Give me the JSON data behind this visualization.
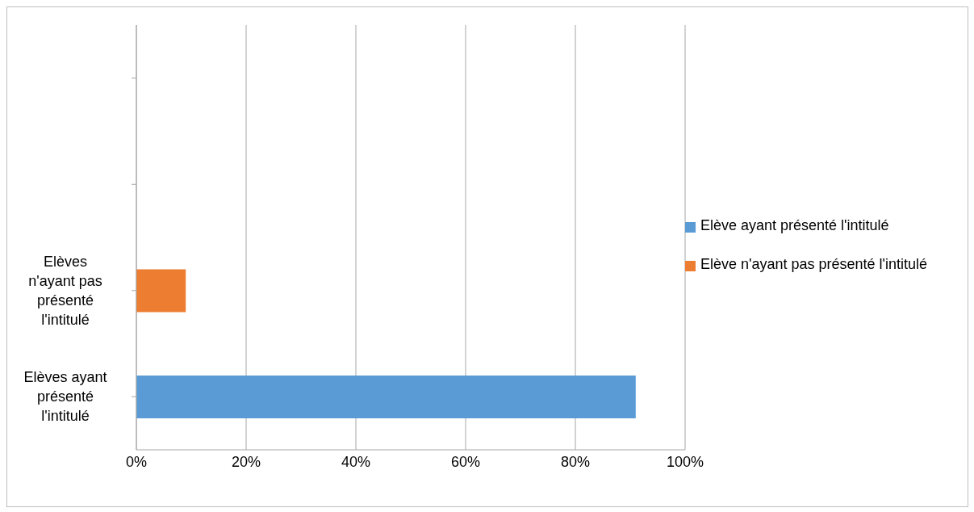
{
  "chart_data": {
    "type": "bar",
    "orientation": "horizontal",
    "stacked": true,
    "categories": [
      null,
      null,
      "Elèves n'ayant pas présenté l'intitulé",
      "Elèves ayant présenté l'intitulé"
    ],
    "series": [
      {
        "name": "Elève ayant présenté l'intitulé",
        "color": "#5b9bd5",
        "values": [
          null,
          null,
          null,
          91
        ]
      },
      {
        "name": "Elève n'ayant pas présenté l'intitulé",
        "color": "#ed7d31",
        "values": [
          null,
          null,
          9,
          null
        ]
      }
    ],
    "xlim": [
      0,
      100
    ],
    "xticks": [
      {
        "value": 0,
        "label": "0%"
      },
      {
        "value": 20,
        "label": "20%"
      },
      {
        "value": 40,
        "label": "40%"
      },
      {
        "value": 60,
        "label": "60%"
      },
      {
        "value": 80,
        "label": "80%"
      },
      {
        "value": 100,
        "label": "100%"
      }
    ],
    "grid": "x",
    "legend": "right"
  }
}
